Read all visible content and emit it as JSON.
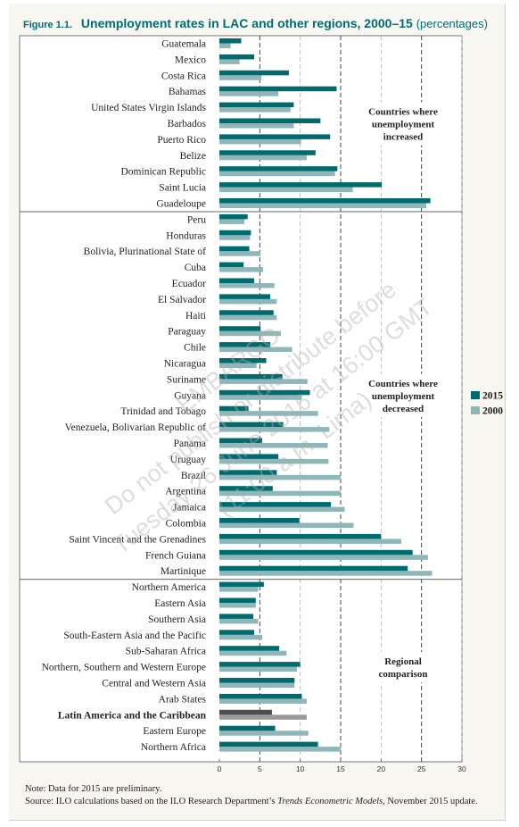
{
  "figure_label": "Figure 1.1.",
  "title": "Unemployment rates in LAC and other regions, 2000–15",
  "title_suffix": "(percentages)",
  "notes": {
    "note": "Note: Data for 2015 are preliminary.",
    "source_prefix": "Source: ILO calculations based on the ILO Research Department’s ",
    "source_italic": "Trends Econometric Models",
    "source_suffix": ", November 2015 update."
  },
  "watermark": [
    "EMBARGO",
    "Do not publish or distribute before",
    "Tuesday 26 June 2016 at 16:00 GMT",
    "(11:00 a.m. Lima)"
  ],
  "colors": {
    "s2015": "#006b6e",
    "s2000": "#8fb6b8",
    "highlight2015": "#4d4d4d",
    "highlight2000": "#9a9a9a"
  },
  "chart_data": {
    "type": "bar",
    "orientation": "horizontal",
    "xlim": [
      0,
      30
    ],
    "xticks": [
      0,
      5,
      10,
      15,
      20,
      25,
      30
    ],
    "grid": "vertical dashed at every 5",
    "legend_position": "right",
    "series": [
      {
        "name": "2015",
        "values": [
          2.7,
          4.3,
          8.6,
          14.5,
          9.2,
          12.5,
          13.7,
          11.9,
          14.6,
          20.1,
          26.1,
          3.5,
          3.9,
          3.7,
          3.0,
          4.3,
          6.3,
          6.7,
          5.1,
          6.3,
          5.8,
          7.8,
          11.2,
          3.6,
          7.9,
          5.3,
          7.3,
          7.1,
          6.6,
          13.8,
          9.9,
          20.0,
          23.9,
          23.3,
          5.5,
          4.5,
          4.2,
          4.3,
          7.4,
          10.0,
          9.3,
          10.2,
          6.5,
          6.9,
          12.2
        ]
      },
      {
        "name": "2000",
        "values": [
          1.4,
          2.5,
          5.2,
          7.3,
          8.8,
          9.2,
          10.1,
          10.8,
          14.3,
          16.5,
          25.6,
          3.1,
          3.8,
          5.1,
          5.4,
          6.8,
          7.1,
          7.1,
          7.6,
          9.0,
          4.6,
          10.9,
          10.2,
          12.2,
          13.6,
          13.4,
          13.5,
          15.0,
          15.0,
          15.5,
          16.6,
          22.5,
          25.8,
          26.3,
          4.8,
          4.5,
          4.8,
          5.3,
          8.3,
          9.6,
          9.3,
          10.8,
          10.8,
          11.0,
          15.0
        ]
      }
    ],
    "categories": [
      "Guatemala",
      "Mexico",
      "Costa Rica",
      "Bahamas",
      "United States Virgin Islands",
      "Barbados",
      "Puerto Rico",
      "Belize",
      "Dominican Republic",
      "Saint Lucia",
      "Guadeloupe",
      "Peru",
      "Honduras",
      "Bolivia, Plurinational State of",
      "Cuba",
      "Ecuador",
      "El Salvador",
      "Haiti",
      "Paraguay",
      "Chile",
      "Nicaragua",
      "Suriname",
      "Guyana",
      "Trinidad and Tobago",
      "Venezuela, Bolivarian Republic of",
      "Panama",
      "Uruguay",
      "Brazil",
      "Argentina",
      "Jamaica",
      "Colombia",
      "Saint Vincent and the Grenadines",
      "French Guiana",
      "Martinique",
      "Northern America",
      "Eastern Asia",
      "Southern Asia",
      "South-Eastern Asia and the Pacific",
      "Sub-Saharan Africa",
      "Northern, Southern and Western Europe",
      "Central and Western Asia",
      "Arab States",
      "Latin America and the Caribbean",
      "Eastern Europe",
      "Northern Africa"
    ],
    "highlight_category": "Latin America and the Caribbean",
    "groups": [
      {
        "label": [
          "Countries where",
          "unemployment",
          "increased"
        ],
        "count": 11
      },
      {
        "label": [
          "Countries where",
          "unemployment",
          "decreased"
        ],
        "count": 23
      },
      {
        "label": [
          "Regional",
          "comparison"
        ],
        "count": 11
      }
    ]
  }
}
